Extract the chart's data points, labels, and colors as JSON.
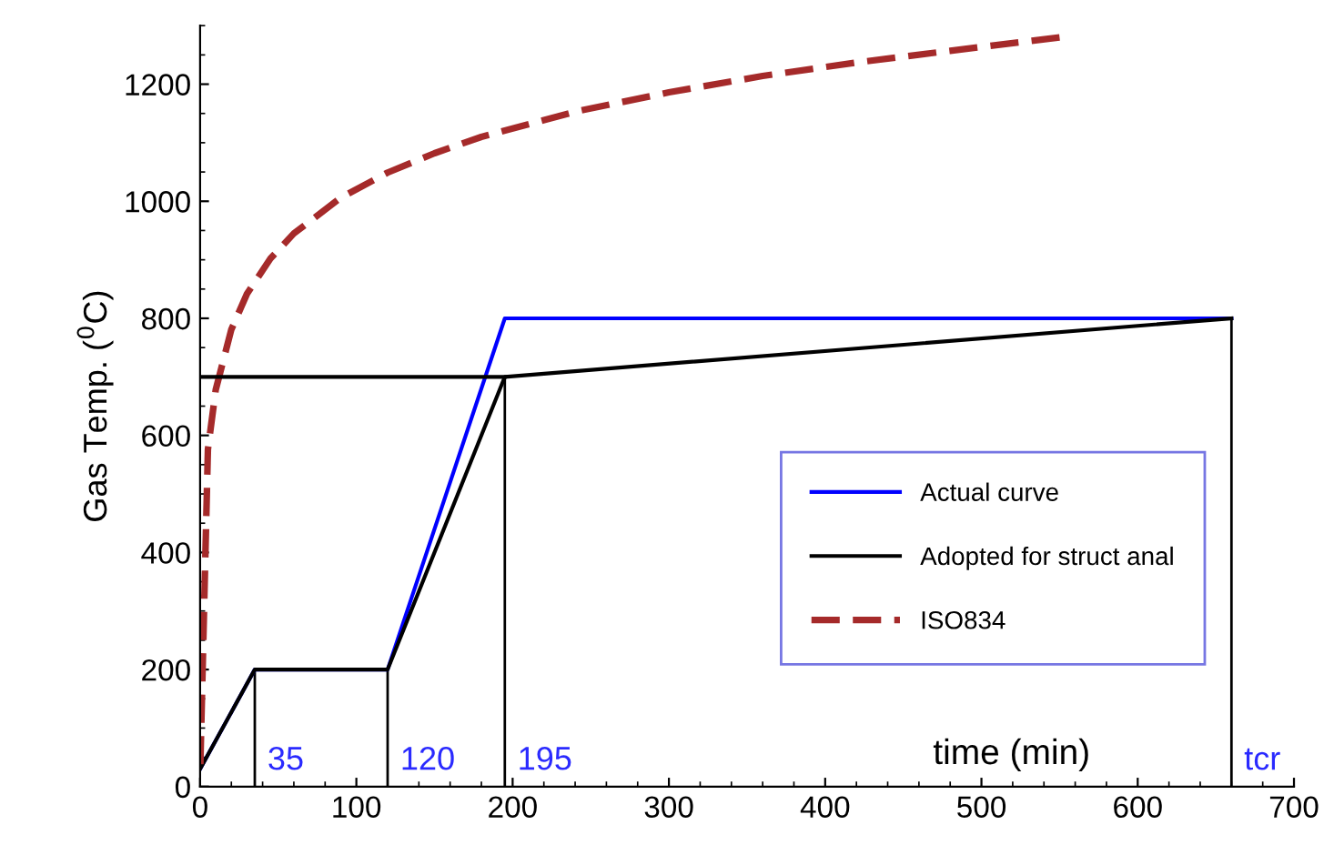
{
  "chart_data": {
    "type": "line",
    "xlabel": "time (min)",
    "ylabel": "Gas Temp. ($^{0}$C)",
    "xlim": [
      0,
      700
    ],
    "xticks": [
      0,
      100,
      200,
      300,
      400,
      500,
      600,
      700
    ],
    "ylim": [
      0,
      1300
    ],
    "yticks": [
      0,
      200,
      400,
      600,
      800,
      1000,
      1200
    ],
    "legend": "center right",
    "grid": false,
    "series": [
      {
        "name": "Actual curve",
        "color": "#0000ff",
        "line_style": "solid",
        "x": [
          0,
          35,
          120,
          195,
          660
        ],
        "values": [
          30,
          200,
          200,
          800,
          800
        ]
      },
      {
        "name": "Adopted for struct anal",
        "color": "#000000",
        "line_style": "solid",
        "x": [
          0,
          35,
          120,
          195,
          660
        ],
        "values": [
          30,
          200,
          200,
          700,
          800
        ]
      },
      {
        "name": "ISO834",
        "color": "#a52a2a",
        "line_style": "dashed",
        "x": [
          0,
          5,
          10,
          20,
          30,
          45,
          60,
          90,
          120,
          150,
          180,
          240,
          300,
          360,
          420,
          480,
          550
        ],
        "values": [
          20,
          576,
          678,
          781,
          842,
          902,
          945,
          1006,
          1049,
          1082,
          1110,
          1153,
          1186,
          1214,
          1237,
          1257,
          1280
        ]
      },
      {
        "type": "bar",
        "color": "#000000",
        "x": [
          35,
          120,
          195,
          660
        ],
        "values": [
          200,
          200,
          700,
          800
        ]
      },
      {
        "color": "#000000",
        "line_style": "solid",
        "x": [
          0,
          195
        ],
        "values": [
          700,
          700
        ]
      }
    ],
    "annotations": [
      {
        "text": "35",
        "x": 35,
        "y": 0
      },
      {
        "text": "120",
        "x": 120,
        "y": 0
      },
      {
        "text": "195",
        "x": 195,
        "y": 0
      },
      {
        "text": "tcr",
        "x": 660,
        "y": 0
      }
    ]
  }
}
